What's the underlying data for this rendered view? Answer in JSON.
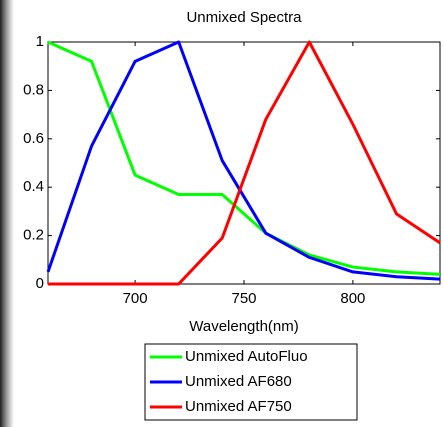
{
  "chart_data": {
    "type": "line",
    "title": "Unmixed Spectra",
    "x_label": "Wavelength(nm)",
    "x": [
      660,
      680,
      700,
      720,
      740,
      760,
      780,
      800,
      820,
      840
    ],
    "series": [
      {
        "name": "Unmixed AutoFluo",
        "color": "#00ff00",
        "values": [
          1,
          0.92,
          0.45,
          0.37,
          0.37,
          0.21,
          0.12,
          0.07,
          0.05,
          0.04
        ]
      },
      {
        "name": "Unmixed AF680",
        "color": "#0000ff",
        "values": [
          0.05,
          0.57,
          0.92,
          1,
          0.51,
          0.21,
          0.11,
          0.05,
          0.03,
          0.02
        ]
      },
      {
        "name": "Unmixed AF750",
        "color": "#ff0000",
        "values": [
          0,
          0,
          0,
          0,
          0.19,
          0.68,
          1,
          0.66,
          0.29,
          0.17
        ]
      }
    ],
    "xlim": [
      660,
      840
    ],
    "xticks": [
      700,
      750,
      800
    ],
    "ylim": [
      0,
      1
    ],
    "yticks": [
      0,
      0.2,
      0.4,
      0.6,
      0.8,
      1
    ],
    "grid": false,
    "legend": "below"
  }
}
